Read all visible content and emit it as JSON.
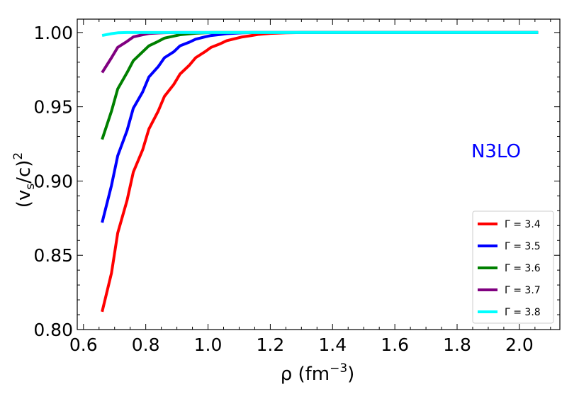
{
  "chart_data": {
    "type": "line",
    "title": "",
    "xlabel": "ρ (fm⁻³)",
    "xlabel_base": "ρ (fm",
    "xlabel_sup": "−3",
    "xlabel_close": ")",
    "ylabel": "(vs/c)²",
    "ylabel_parts": {
      "open": "(v",
      "sub": "s",
      "mid": "/c)",
      "sup": "2"
    },
    "xlim": [
      0.58,
      2.13
    ],
    "ylim": [
      0.8,
      1.009
    ],
    "xticks": [
      0.6,
      0.8,
      1.0,
      1.2,
      1.4,
      1.6,
      1.8,
      2.0
    ],
    "xtick_labels": [
      "0.6",
      "0.8",
      "1.0",
      "1.2",
      "1.4",
      "1.6",
      "1.8",
      "2.0"
    ],
    "yticks": [
      0.8,
      0.85,
      0.9,
      0.95,
      1.0
    ],
    "ytick_labels": [
      "0.80",
      "0.85",
      "0.90",
      "0.95",
      "1.00"
    ],
    "grid": false,
    "legend_position": "lower-right",
    "annotation": {
      "text": "N3LO",
      "color": "#0000ff"
    },
    "x": [
      0.66,
      0.69,
      0.71,
      0.74,
      0.76,
      0.79,
      0.81,
      0.84,
      0.86,
      0.89,
      0.91,
      0.94,
      0.96,
      0.99,
      1.01,
      1.04,
      1.06,
      1.09,
      1.11,
      1.14,
      1.16,
      1.2,
      1.25,
      1.3,
      1.4,
      1.6,
      1.8,
      2.0,
      2.06
    ],
    "series": [
      {
        "name": "Γ = 3.4",
        "color": "#ff0000",
        "values": [
          0.812,
          0.838,
          0.865,
          0.887,
          0.906,
          0.921,
          0.935,
          0.947,
          0.957,
          0.965,
          0.972,
          0.978,
          0.983,
          0.987,
          0.99,
          0.9925,
          0.9945,
          0.996,
          0.997,
          0.998,
          0.9987,
          0.9994,
          0.9998,
          1.0,
          1.0,
          1.0,
          1.0,
          1.0,
          1.0
        ]
      },
      {
        "name": "Γ = 3.5",
        "color": "#0000ff",
        "values": [
          0.872,
          0.897,
          0.917,
          0.934,
          0.949,
          0.96,
          0.97,
          0.977,
          0.983,
          0.987,
          0.991,
          0.9935,
          0.9955,
          0.997,
          0.998,
          0.9987,
          0.9992,
          0.9996,
          0.9998,
          1.0,
          1.0,
          1.0,
          1.0,
          1.0,
          1.0,
          1.0,
          1.0,
          1.0,
          1.0
        ]
      },
      {
        "name": "Γ = 3.6",
        "color": "#008000",
        "values": [
          0.928,
          0.947,
          0.962,
          0.973,
          0.981,
          0.987,
          0.991,
          0.994,
          0.9962,
          0.9976,
          0.9985,
          0.9991,
          0.9995,
          0.9998,
          1.0,
          1.0,
          1.0,
          1.0,
          1.0,
          1.0,
          1.0,
          1.0,
          1.0,
          1.0,
          1.0,
          1.0,
          1.0,
          1.0,
          1.0
        ]
      },
      {
        "name": "Γ = 3.7",
        "color": "#800080",
        "values": [
          0.973,
          0.983,
          0.99,
          0.994,
          0.997,
          0.9985,
          0.9993,
          0.9997,
          0.9999,
          1.0,
          1.0,
          1.0,
          1.0,
          1.0,
          1.0,
          1.0,
          1.0,
          1.0,
          1.0,
          1.0,
          1.0,
          1.0,
          1.0,
          1.0,
          1.0,
          1.0,
          1.0,
          1.0,
          1.0
        ]
      },
      {
        "name": "Γ = 3.8",
        "color": "#00ffff",
        "values": [
          0.998,
          0.9992,
          0.9998,
          1.0,
          1.0,
          1.0,
          1.0,
          1.0,
          1.0,
          1.0,
          1.0,
          1.0,
          1.0,
          1.0,
          1.0,
          1.0,
          1.0,
          1.0,
          1.0,
          1.0,
          1.0,
          1.0,
          1.0,
          1.0,
          1.0,
          1.0,
          1.0,
          1.0,
          1.0
        ]
      }
    ]
  }
}
